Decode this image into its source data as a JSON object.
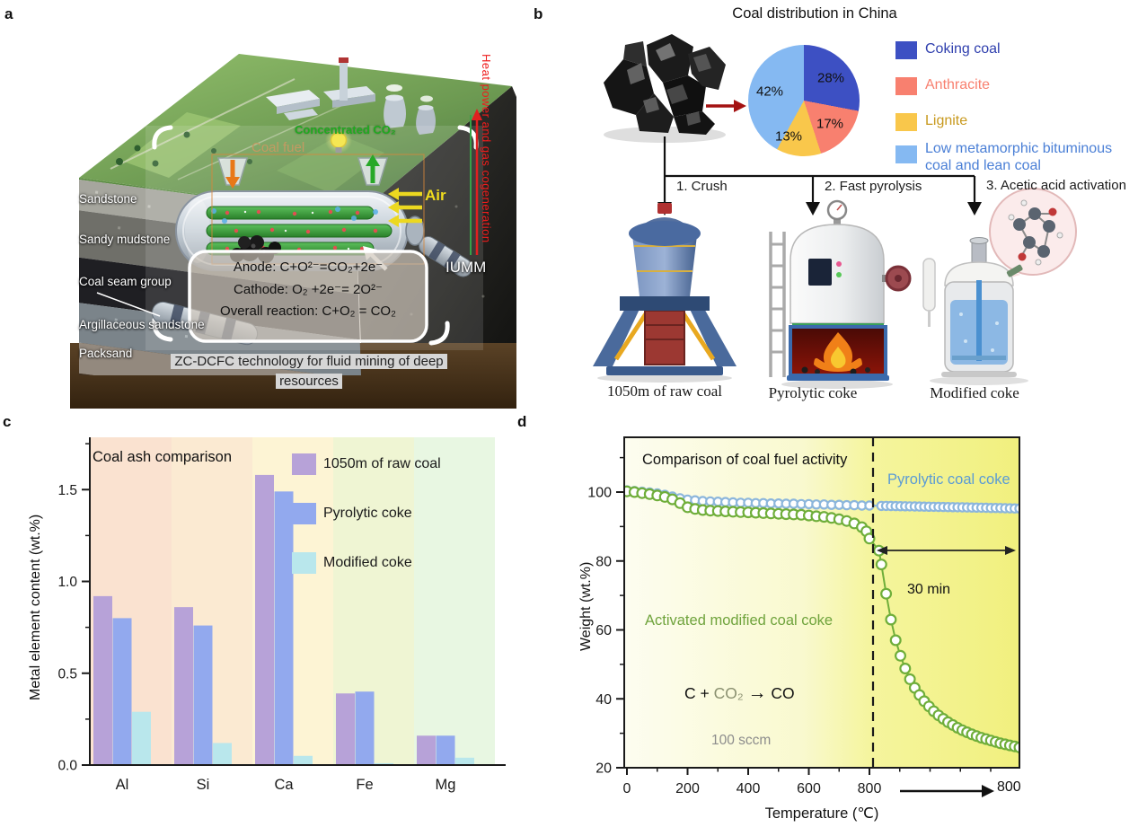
{
  "panels": {
    "a": "a",
    "b": "b",
    "c": "c",
    "d": "d"
  },
  "panel_a": {
    "strata": [
      "Sandstone",
      "Sandy mudstone",
      "Coal seam group",
      "Argillaceous sandstone",
      "Packsand"
    ],
    "labels": {
      "coal_fuel": "Coal fuel",
      "co2_out": "Concentrated CO₂",
      "air": "Air",
      "iumm": "IUMM",
      "cogeneration": "Heat power and gas cogeneration"
    },
    "reactions": {
      "anode": "Anode: C+O²⁻=CO₂+2e⁻",
      "cathode": "Cathode:  O₂ +2e⁻= 2O²⁻",
      "overall": "Overall reaction:  C+O₂ = CO₂"
    },
    "caption": "ZC-DCFC technology for fluid mining of deep resources"
  },
  "panel_b": {
    "title": "Coal distribution in China",
    "chart_data": {
      "type": "pie",
      "start_angle_deg": 0,
      "direction": "clockwise",
      "slices": [
        {
          "label": "Coking coal",
          "value": 28,
          "pct_label": "28%",
          "color": "#3d50c3",
          "text_color": "#2f3fae"
        },
        {
          "label": "Anthracite",
          "value": 17,
          "pct_label": "17%",
          "color": "#f8806f",
          "text_color": "#f8806f"
        },
        {
          "label": "Lignite",
          "value": 13,
          "pct_label": "13%",
          "color": "#f9c74b",
          "text_color": "#c8991e"
        },
        {
          "label": "Low metamorphic bituminous coal and lean coal",
          "value": 42,
          "pct_label": "42%",
          "color": "#85b9f2",
          "text_color": "#4a7fd6"
        }
      ]
    },
    "steps": [
      "1. Crush",
      "2. Fast pyrolysis",
      "3. Acetic acid activation"
    ],
    "products": [
      "1050m of raw coal",
      "Pyrolytic coke",
      "Modified coke"
    ]
  },
  "panel_c": {
    "chart_data": {
      "type": "bar",
      "title": "Coal ash comparison",
      "ylabel": "Metal element content (wt.%)",
      "categories": [
        "Al",
        "Si",
        "Ca",
        "Fe",
        "Mg"
      ],
      "yticks": [
        "0.0",
        "0.5",
        "1.0",
        "1.5"
      ],
      "ylim": [
        0,
        1.785
      ],
      "grid": false,
      "band_colors": [
        "#fae2d0",
        "#fbead2",
        "#fdf4d4",
        "#eff5d3",
        "#e8f7e2"
      ],
      "series": [
        {
          "name": "1050m of raw coal",
          "color": "#b7a2d8",
          "values": [
            0.92,
            0.86,
            1.58,
            0.39,
            0.16
          ]
        },
        {
          "name": "Pyrolytic coke",
          "color": "#92a9ee",
          "values": [
            0.8,
            0.76,
            1.49,
            0.4,
            0.16
          ]
        },
        {
          "name": "Modified coke",
          "color": "#b9e7ec",
          "values": [
            0.29,
            0.12,
            0.05,
            0.01,
            0.04
          ]
        }
      ]
    }
  },
  "panel_d": {
    "chart_data": {
      "type": "line",
      "title": "Comparison of coal fuel activity",
      "xlabel": "Temperature (℃)",
      "ylabel": "Weight (wt.%)",
      "xticks": [
        "0",
        "200",
        "400",
        "600",
        "800"
      ],
      "x_end_label": "800",
      "yticks": [
        "20",
        "40",
        "60",
        "80",
        "100"
      ],
      "ylim": [
        20,
        116
      ],
      "x_structure": {
        "ramp_max_c": 800,
        "hold_minutes": 30
      },
      "series": [
        {
          "name": "Pyrolytic coal coke",
          "stroke": "#8cb6dc",
          "label_color": "#5b9bd5",
          "marker_r": 4.6,
          "ramp": [
            [
              0,
              100.5
            ],
            [
              25,
              100.3
            ],
            [
              50,
              100.1
            ],
            [
              75,
              99.9
            ],
            [
              100,
              99.6
            ],
            [
              125,
              99.2
            ],
            [
              150,
              98.7
            ],
            [
              175,
              98.2
            ],
            [
              200,
              97.8
            ],
            [
              225,
              97.6
            ],
            [
              250,
              97.4
            ],
            [
              275,
              97.3
            ],
            [
              300,
              97.2
            ],
            [
              325,
              97.1
            ],
            [
              350,
              97.0
            ],
            [
              375,
              96.9
            ],
            [
              400,
              96.9
            ],
            [
              425,
              96.8
            ],
            [
              450,
              96.8
            ],
            [
              475,
              96.7
            ],
            [
              500,
              96.7
            ],
            [
              525,
              96.6
            ],
            [
              550,
              96.6
            ],
            [
              575,
              96.5
            ],
            [
              600,
              96.5
            ],
            [
              625,
              96.4
            ],
            [
              650,
              96.4
            ],
            [
              675,
              96.3
            ],
            [
              700,
              96.3
            ],
            [
              725,
              96.2
            ],
            [
              750,
              96.2
            ],
            [
              775,
              96.1
            ],
            [
              800,
              96.1
            ]
          ],
          "hold": [
            [
              1,
              96.0
            ],
            [
              2,
              96.0
            ],
            [
              3,
              95.97
            ],
            [
              4,
              95.94
            ],
            [
              5,
              95.92
            ],
            [
              6,
              95.89
            ],
            [
              7,
              95.86
            ],
            [
              8,
              95.83
            ],
            [
              9,
              95.81
            ],
            [
              10,
              95.78
            ],
            [
              11,
              95.75
            ],
            [
              12,
              95.73
            ],
            [
              13,
              95.7
            ],
            [
              14,
              95.67
            ],
            [
              15,
              95.65
            ],
            [
              16,
              95.62
            ],
            [
              17,
              95.59
            ],
            [
              18,
              95.56
            ],
            [
              19,
              95.54
            ],
            [
              20,
              95.51
            ],
            [
              21,
              95.48
            ],
            [
              22,
              95.46
            ],
            [
              23,
              95.43
            ],
            [
              24,
              95.4
            ],
            [
              25,
              95.38
            ],
            [
              26,
              95.35
            ],
            [
              27,
              95.32
            ],
            [
              28,
              95.29
            ],
            [
              29,
              95.27
            ],
            [
              30,
              95.24
            ]
          ]
        },
        {
          "name": "Activated modified coal coke",
          "stroke": "#6fae3a",
          "label_color": "#6fa33c",
          "marker_r": 5.4,
          "ramp": [
            [
              0,
              100.2
            ],
            [
              25,
              100.0
            ],
            [
              50,
              99.7
            ],
            [
              75,
              99.4
            ],
            [
              100,
              99.0
            ],
            [
              125,
              98.6
            ],
            [
              150,
              97.9
            ],
            [
              175,
              96.8
            ],
            [
              200,
              95.6
            ],
            [
              225,
              95.1
            ],
            [
              250,
              94.8
            ],
            [
              275,
              94.6
            ],
            [
              300,
              94.5
            ],
            [
              325,
              94.4
            ],
            [
              350,
              94.3
            ],
            [
              375,
              94.2
            ],
            [
              400,
              94.1
            ],
            [
              425,
              94.0
            ],
            [
              450,
              93.9
            ],
            [
              475,
              93.8
            ],
            [
              500,
              93.7
            ],
            [
              525,
              93.6
            ],
            [
              550,
              93.5
            ],
            [
              575,
              93.4
            ],
            [
              600,
              93.2
            ],
            [
              625,
              93.0
            ],
            [
              650,
              92.8
            ],
            [
              675,
              92.5
            ],
            [
              700,
              92.1
            ],
            [
              725,
              91.6
            ],
            [
              750,
              90.9
            ],
            [
              775,
              89.8
            ],
            [
              790,
              88.6
            ],
            [
              800,
              86.5
            ]
          ],
          "hold": [
            [
              0.5,
              83.0
            ],
            [
              1,
              79.0
            ],
            [
              2,
              70.5
            ],
            [
              3,
              63.0
            ],
            [
              4,
              57.0
            ],
            [
              5,
              52.5
            ],
            [
              6,
              48.8
            ],
            [
              7,
              45.7
            ],
            [
              8,
              43.2
            ],
            [
              9,
              41.1
            ],
            [
              10,
              39.3
            ],
            [
              11,
              37.8
            ],
            [
              12,
              36.4
            ],
            [
              13,
              35.2
            ],
            [
              14,
              34.2
            ],
            [
              15,
              33.2
            ],
            [
              16,
              32.4
            ],
            [
              17,
              31.6
            ],
            [
              18,
              30.9
            ],
            [
              19,
              30.3
            ],
            [
              20,
              29.7
            ],
            [
              21,
              29.2
            ],
            [
              22,
              28.7
            ],
            [
              23,
              28.3
            ],
            [
              24,
              27.9
            ],
            [
              25,
              27.5
            ],
            [
              26,
              27.1
            ],
            [
              27,
              26.8
            ],
            [
              28,
              26.5
            ],
            [
              29,
              26.2
            ],
            [
              30,
              25.9
            ]
          ]
        }
      ],
      "annotations": {
        "hold_label": "30 min",
        "flow_label": "100 sccm",
        "eq_left": "C +",
        "eq_mid": "CO₂",
        "eq_arrow": "→",
        "eq_right": "CO"
      }
    }
  }
}
